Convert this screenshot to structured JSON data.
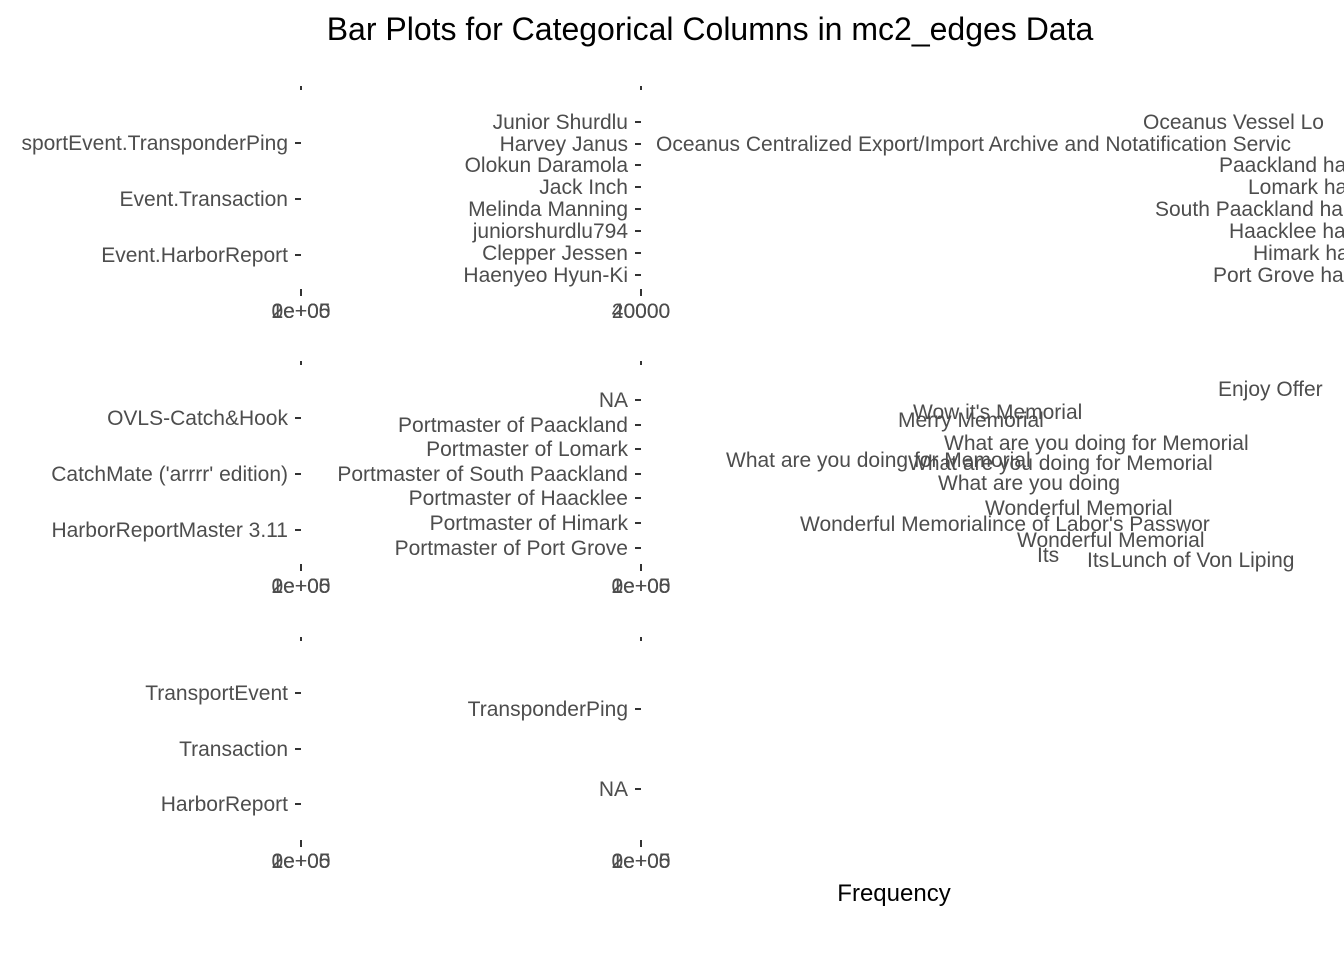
{
  "chart_data": {
    "title": "Bar Plots for Categorical Columns in mc2_edges Data",
    "xlabel": "Frequency",
    "ylabel": "",
    "grid": false,
    "legend": "none",
    "panels": [
      {
        "type": "bar",
        "orientation": "horizontal",
        "categories": [
          "Event.HarborReport",
          "Event.Transaction",
          "Event.TransportEvent.TransponderPing"
        ],
        "category_display": [
          "Event.HarborReport",
          "Event.Transaction",
          "sportEvent.TransponderPing"
        ],
        "x_tick_labels": [
          "0e+00",
          "1e+05",
          "2e+05"
        ],
        "x_tick_labels_display": [
          "2e+05"
        ],
        "values": []
      },
      {
        "type": "bar",
        "orientation": "horizontal",
        "categories": [
          "Haenyeo Hyun-Ki",
          "Clepper Jessen",
          "juniorshurdlu794",
          "Melinda Manning",
          "Jack Inch",
          "Olokun Daramola",
          "Harvey Janus",
          "Junior Shurdlu"
        ],
        "x_tick_labels": [
          "0",
          "20000",
          "40000"
        ],
        "x_tick_labels_display": [
          "40000"
        ],
        "values": []
      },
      {
        "type": "bar",
        "orientation": "horizontal",
        "categories": [
          "Port Grove ha",
          "Himark ha",
          "Haacklee ha",
          "South Paackland ha",
          "Lomark ha",
          "Paackland ha",
          "Oceanus Centralized Export/Import Archive and Notatification Servic",
          "Oceanus Vessel Lo"
        ],
        "values": []
      },
      {
        "type": "bar",
        "orientation": "horizontal",
        "categories": [
          "HarborReportMaster 3.11",
          "CatchMate ('arrrr' edition)",
          "OVLS-Catch&Hook"
        ],
        "x_tick_labels": [
          "0e+00",
          "1e+05",
          "2e+05"
        ],
        "x_tick_labels_display": [
          "2e+05"
        ],
        "values": []
      },
      {
        "type": "bar",
        "orientation": "horizontal",
        "categories": [
          "Portmaster of Port Grove",
          "Portmaster of Himark",
          "Portmaster of Haacklee",
          "Portmaster of South Paackland",
          "Portmaster of Lomark",
          "Portmaster of Paackland",
          "NA"
        ],
        "x_tick_labels": [
          "0e+00",
          "1e+05",
          "2e+05"
        ],
        "x_tick_labels_display": [
          "2e+05"
        ],
        "values": []
      },
      {
        "type": "bar",
        "orientation": "horizontal",
        "categories": [
          "Merry Memorial",
          "Wow it's Memorial",
          "What are you doing for Memorial",
          "What are you doing for Memorial",
          "What are you doing",
          "What are you doing for Memorial",
          "Wonderful Memorial",
          "Wonderful Memorial",
          "Wonderful Memorialince of Labor's Passwor",
          "Its",
          "Its",
          "Lunch of Von Liping",
          "Enjoy Offer"
        ],
        "values": []
      },
      {
        "type": "bar",
        "orientation": "horizontal",
        "categories": [
          "HarborReport",
          "Transaction",
          "TransportEvent"
        ],
        "x_tick_labels": [
          "0e+00",
          "1e+05",
          "2e+05"
        ],
        "x_tick_labels_display": [
          "2e+05"
        ],
        "values": []
      },
      {
        "type": "bar",
        "orientation": "horizontal",
        "categories": [
          "NA",
          "TransponderPing"
        ],
        "x_tick_labels": [
          "0e+00",
          "1e+05",
          "2e+05"
        ],
        "x_tick_labels_display": [
          "2e+05"
        ],
        "values": []
      }
    ]
  }
}
